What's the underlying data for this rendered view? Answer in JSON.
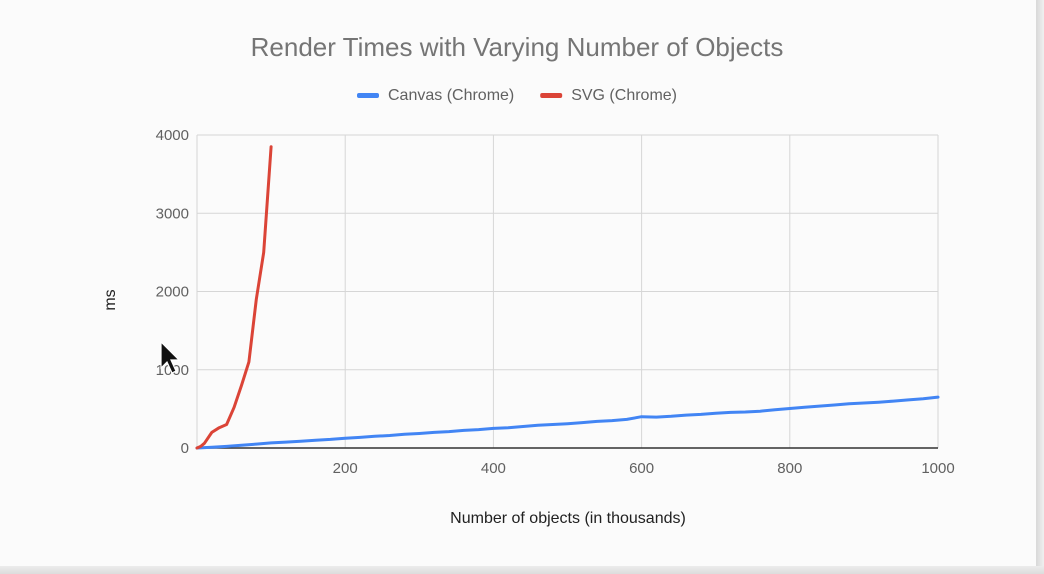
{
  "chart_data": {
    "type": "line",
    "title": "Render Times with Varying Number of Objects",
    "xlabel": "Number of objects (in thousands)",
    "ylabel": "ms",
    "xlim": [
      0,
      1000
    ],
    "ylim": [
      0,
      4000
    ],
    "x_ticks": [
      "200",
      "400",
      "600",
      "800",
      "1000"
    ],
    "y_ticks": [
      "0",
      "1000",
      "2000",
      "3000",
      "4000"
    ],
    "grid": true,
    "legend_position": "top",
    "series": [
      {
        "name": "Canvas (Chrome)",
        "color": "#4285f4",
        "x": [
          0,
          20,
          40,
          60,
          80,
          100,
          120,
          140,
          160,
          180,
          200,
          220,
          240,
          260,
          280,
          300,
          320,
          340,
          360,
          380,
          400,
          420,
          440,
          460,
          480,
          500,
          520,
          540,
          560,
          580,
          600,
          620,
          640,
          660,
          680,
          700,
          720,
          740,
          760,
          780,
          800,
          820,
          840,
          860,
          880,
          900,
          920,
          940,
          960,
          980,
          1000
        ],
        "y": [
          0,
          10,
          20,
          35,
          50,
          65,
          75,
          85,
          100,
          110,
          125,
          135,
          150,
          160,
          175,
          185,
          200,
          210,
          225,
          235,
          250,
          260,
          275,
          290,
          300,
          310,
          325,
          340,
          350,
          365,
          400,
          395,
          405,
          420,
          430,
          445,
          455,
          460,
          470,
          490,
          505,
          520,
          535,
          550,
          565,
          575,
          585,
          600,
          615,
          630,
          650
        ]
      },
      {
        "name": "SVG (Chrome)",
        "color": "#db4437",
        "x": [
          0,
          5,
          10,
          20,
          30,
          40,
          50,
          60,
          70,
          80,
          90,
          100
        ],
        "y": [
          0,
          20,
          60,
          200,
          260,
          300,
          520,
          800,
          1100,
          1900,
          2500,
          3850
        ]
      }
    ]
  }
}
